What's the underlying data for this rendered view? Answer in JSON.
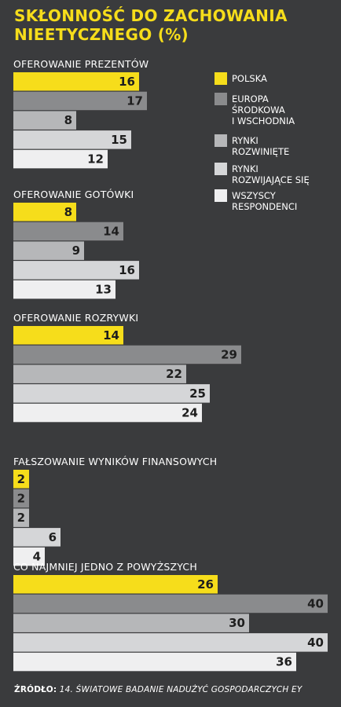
{
  "title": "SKŁONNOŚĆ DO ZACHOWANIA NIEETYCZNEGO (%)",
  "title_line1": "SKŁONNOŚĆ DO ZACHOWANIA",
  "title_line2": "NIEETYCZNEGO (%)",
  "source_label": "ŹRÓDŁO:",
  "source_text": "14. ŚWIATOWE BADANIE NADUŻYĆ GOSPODARCZYCH EY",
  "colors": {
    "background": "#3a3b3d",
    "title": "#f6dd1b"
  },
  "chart_data": {
    "type": "bar",
    "orientation": "horizontal",
    "xlim": [
      0,
      40
    ],
    "legend_placement": "top-right",
    "categories": [
      "OFEROWANIE PREZENTÓW",
      "OFEROWANIE GOTÓWKI",
      "OFEROWANIE ROZRYWKI",
      "FAŁSZOWANIE WYNIKÓW FINANSOWYCH",
      "CO NAJMNIEJ JEDNO Z POWYŻSZYCH"
    ],
    "series": [
      {
        "name": "POLSKA",
        "legend_lines": [
          "POLSKA"
        ],
        "color": "#f6dd1b",
        "values": [
          16,
          8,
          14,
          2,
          26
        ]
      },
      {
        "name": "EUROPA ŚRODKOWA I WSCHODNIA",
        "legend_lines": [
          "EUROPA",
          "ŚRODKOWA",
          "I WSCHODNIA"
        ],
        "color": "#8a8b8d",
        "values": [
          17,
          14,
          29,
          2,
          40
        ]
      },
      {
        "name": "RYNKI ROZWINIĘTE",
        "legend_lines": [
          "RYNKI",
          "ROZWINIĘTE"
        ],
        "color": "#b6b7b9",
        "values": [
          8,
          9,
          22,
          2,
          30
        ]
      },
      {
        "name": "RYNKI ROZWIJAJĄCE SIĘ",
        "legend_lines": [
          "RYNKI",
          "ROZWIJAJĄCE SIĘ"
        ],
        "color": "#d5d6d8",
        "values": [
          15,
          16,
          25,
          6,
          40
        ]
      },
      {
        "name": "WSZYSCY RESPONDENCI",
        "legend_lines": [
          "WSZYSCY",
          "RESPONDENCI"
        ],
        "color": "#efeff0",
        "values": [
          12,
          13,
          24,
          4,
          36
        ]
      }
    ]
  }
}
